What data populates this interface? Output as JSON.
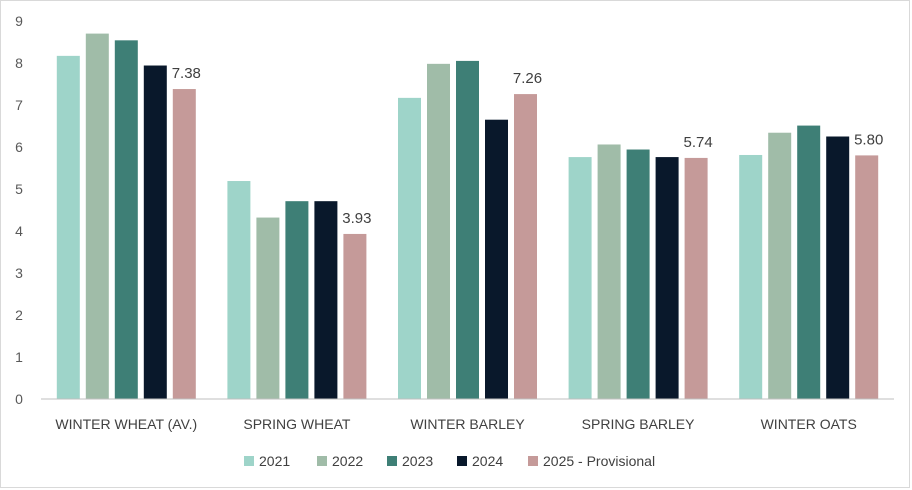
{
  "chart_data": {
    "type": "bar",
    "title": "",
    "xlabel": "",
    "ylabel": "",
    "ylim": [
      0,
      9
    ],
    "yticks": [
      "0",
      "1",
      "2",
      "3",
      "4",
      "5",
      "6",
      "7",
      "8",
      "9"
    ],
    "categories": [
      "WINTER WHEAT (AV.)",
      "SPRING WHEAT",
      "WINTER BARLEY",
      "SPRING BARLEY",
      "WINTER OATS"
    ],
    "series": [
      {
        "name": "2021",
        "color": "#9ed4c9",
        "values": [
          8.17,
          5.19,
          7.17,
          5.76,
          5.81
        ]
      },
      {
        "name": "2022",
        "color": "#a0bca8",
        "values": [
          8.7,
          4.32,
          7.98,
          6.06,
          6.34
        ]
      },
      {
        "name": "2023",
        "color": "#3e7f76",
        "values": [
          8.54,
          4.71,
          8.05,
          5.94,
          6.51
        ]
      },
      {
        "name": "2024",
        "color": "#09182b",
        "values": [
          7.94,
          4.71,
          6.65,
          5.76,
          6.25
        ]
      },
      {
        "name": "2025 - Provisional",
        "color": "#c59a99",
        "values": [
          7.38,
          3.93,
          7.26,
          5.74,
          5.8
        ]
      }
    ],
    "data_labels": {
      "series": "2025 - Provisional",
      "labels": [
        "7.38",
        "3.93",
        "7.26",
        "5.74",
        "5.80"
      ]
    },
    "grid": false,
    "legend_position": "bottom"
  }
}
